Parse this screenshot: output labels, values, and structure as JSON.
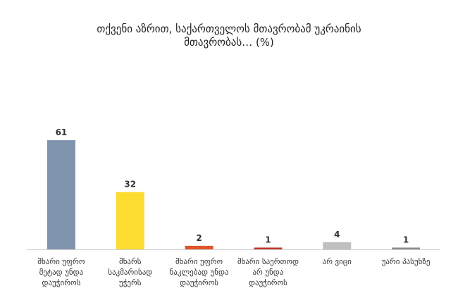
{
  "chart_data": {
    "type": "bar",
    "title": "თქვენი აზრით, საქართველოს მთავრობამ უკრაინის მთავრობას… (%)",
    "categories": [
      "მხარი უფრო მეტად უნდა დაუჭიროს",
      "მხარს საკმარისად უჭერს",
      "მხარი უფრო ნაკლებად უნდა დაუჭიროს",
      "მხარი საერთოდ არ უნდა დაუჭიროს",
      "არ ვიცი",
      "უარი პასუხზე"
    ],
    "values": [
      61,
      32,
      2,
      1,
      4,
      1
    ],
    "colors": [
      "#7f93ad",
      "#fcdc2e",
      "#e0552d",
      "#c0392b",
      "#bfbfbf",
      "#8c8c8c"
    ]
  }
}
